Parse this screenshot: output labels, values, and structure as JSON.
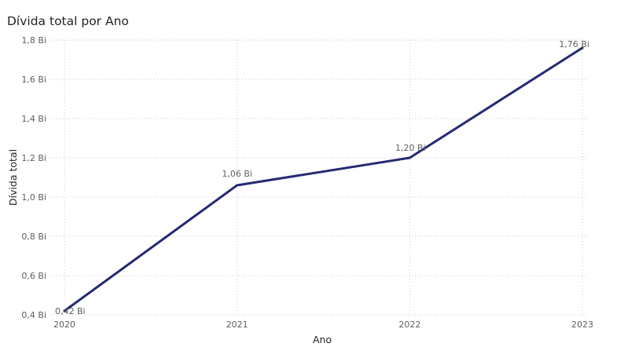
{
  "chart_data": {
    "type": "line",
    "title": "Dívida total por Ano",
    "xlabel": "Ano",
    "ylabel": "Dívida total",
    "categories": [
      "2020",
      "2021",
      "2022",
      "2023"
    ],
    "series": [
      {
        "values": [
          0.42,
          1.06,
          1.2,
          1.76
        ],
        "data_labels": [
          "0,42 Bi",
          "1,06 Bi",
          "1,20 Bi",
          "1,76 Bi"
        ],
        "color": "#252a72"
      }
    ],
    "ylim": [
      0.4,
      1.8
    ],
    "y_ticks": [
      0.4,
      0.6,
      0.8,
      1.0,
      1.2,
      1.4,
      1.6,
      1.8
    ],
    "y_tick_labels": [
      "0,4 Bi",
      "0,6 Bi",
      "0,8 Bi",
      "1,0 Bi",
      "1,2 Bi",
      "1,4 Bi",
      "1,6 Bi",
      "1,8 Bi"
    ],
    "grid": true
  }
}
